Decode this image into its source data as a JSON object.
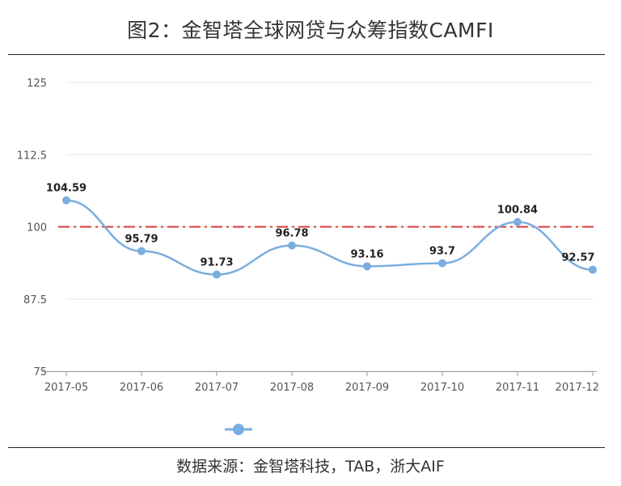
{
  "title": "图2：金智塔全球网贷与众筹指数CAMFI",
  "source": "数据来源：金智塔科技，TAB，浙大AIF",
  "chart_data": {
    "type": "line",
    "categories": [
      "2017-05",
      "2017-06",
      "2017-07",
      "2017-08",
      "2017-09",
      "2017-10",
      "2017-11",
      "2017-12"
    ],
    "series": [
      {
        "values": [
          104.59,
          95.79,
          91.73,
          96.78,
          93.16,
          93.7,
          100.84,
          92.57
        ],
        "labels": [
          "104.59",
          "95.79",
          "91.73",
          "96.78",
          "93.16",
          "93.7",
          "100.84",
          "92.57"
        ],
        "color": "#7aaee0",
        "smooth": true
      }
    ],
    "yticks": [
      "125",
      "112.5",
      "100",
      "87.5",
      "75"
    ],
    "ylim": [
      75,
      125
    ],
    "reference_line": {
      "value": 100,
      "color": "#d9393e",
      "style": "dash-dot"
    },
    "grid": true,
    "legend": {
      "placement": "bottom-center",
      "color": "#7aaee0"
    }
  }
}
